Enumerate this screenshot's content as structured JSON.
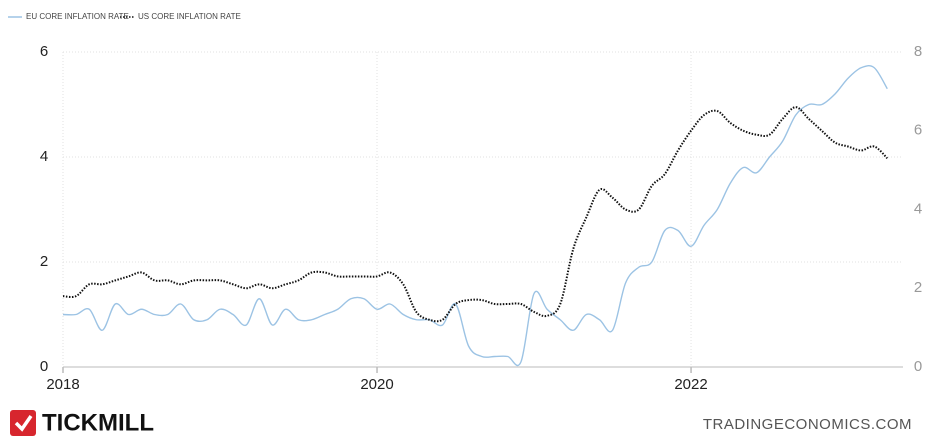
{
  "chart_data": {
    "type": "line",
    "series": [
      {
        "name": "EU CORE INFLATION RATE",
        "color": "#9cc3e4",
        "axis": "y",
        "style": "solid",
        "values": [
          1.0,
          1.0,
          1.1,
          0.7,
          1.2,
          1.0,
          1.1,
          1.0,
          1.0,
          1.2,
          0.9,
          0.9,
          1.1,
          1.0,
          0.8,
          1.3,
          0.8,
          1.1,
          0.9,
          0.9,
          1.0,
          1.1,
          1.3,
          1.3,
          1.1,
          1.2,
          1.0,
          0.9,
          0.9,
          0.8,
          1.2,
          0.4,
          0.2,
          0.2,
          0.2,
          0.1,
          1.4,
          1.1,
          0.9,
          0.7,
          1.0,
          0.9,
          0.7,
          1.6,
          1.9,
          2.0,
          2.6,
          2.6,
          2.3,
          2.7,
          3.0,
          3.5,
          3.8,
          3.7,
          4.0,
          4.3,
          4.8,
          5.0,
          5.0,
          5.2,
          5.5,
          5.7,
          5.7,
          5.3
        ]
      },
      {
        "name": "US CORE INFLATION RATE",
        "color": "#111111",
        "axis": "y2",
        "style": "dotted",
        "values": [
          1.8,
          1.8,
          2.1,
          2.1,
          2.2,
          2.3,
          2.4,
          2.2,
          2.2,
          2.1,
          2.2,
          2.2,
          2.2,
          2.1,
          2.0,
          2.1,
          2.0,
          2.1,
          2.2,
          2.4,
          2.4,
          2.3,
          2.3,
          2.3,
          2.3,
          2.4,
          2.1,
          1.4,
          1.2,
          1.2,
          1.6,
          1.7,
          1.7,
          1.6,
          1.6,
          1.6,
          1.4,
          1.3,
          1.6,
          3.0,
          3.8,
          4.5,
          4.3,
          4.0,
          4.0,
          4.6,
          4.9,
          5.5,
          6.0,
          6.4,
          6.5,
          6.2,
          6.0,
          5.9,
          5.9,
          6.3,
          6.6,
          6.3,
          6.0,
          5.7,
          5.6,
          5.5,
          5.6,
          5.3
        ]
      }
    ],
    "x": [
      2018,
      2018.083,
      2018.167,
      2018.25,
      2018.333,
      2018.417,
      2018.5,
      2018.583,
      2018.667,
      2018.75,
      2018.833,
      2018.917,
      2019,
      2019.083,
      2019.167,
      2019.25,
      2019.333,
      2019.417,
      2019.5,
      2019.583,
      2019.667,
      2019.75,
      2019.833,
      2019.917,
      2020,
      2020.083,
      2020.167,
      2020.25,
      2020.333,
      2020.417,
      2020.5,
      2020.583,
      2020.667,
      2020.75,
      2020.833,
      2020.917,
      2021,
      2021.083,
      2021.167,
      2021.25,
      2021.333,
      2021.417,
      2021.5,
      2021.583,
      2021.667,
      2021.75,
      2021.833,
      2021.917,
      2022,
      2022.083,
      2022.167,
      2022.25,
      2022.333,
      2022.417,
      2022.5,
      2022.583,
      2022.667,
      2022.75,
      2022.833,
      2022.917,
      2023,
      2023.083,
      2023.167,
      2023.25
    ],
    "xlim": [
      2018,
      2023.35
    ],
    "xticks": [
      2018,
      2020,
      2022
    ],
    "ylim": [
      0,
      6
    ],
    "yticks": [
      0,
      2,
      4,
      6
    ],
    "y2lim": [
      0,
      8
    ],
    "y2ticks": [
      0,
      2,
      4,
      6,
      8
    ],
    "grid": true,
    "legend": "top-left"
  },
  "footer": {
    "brand": "TICKMILL",
    "source": "TRADINGECONOMICS.COM"
  }
}
